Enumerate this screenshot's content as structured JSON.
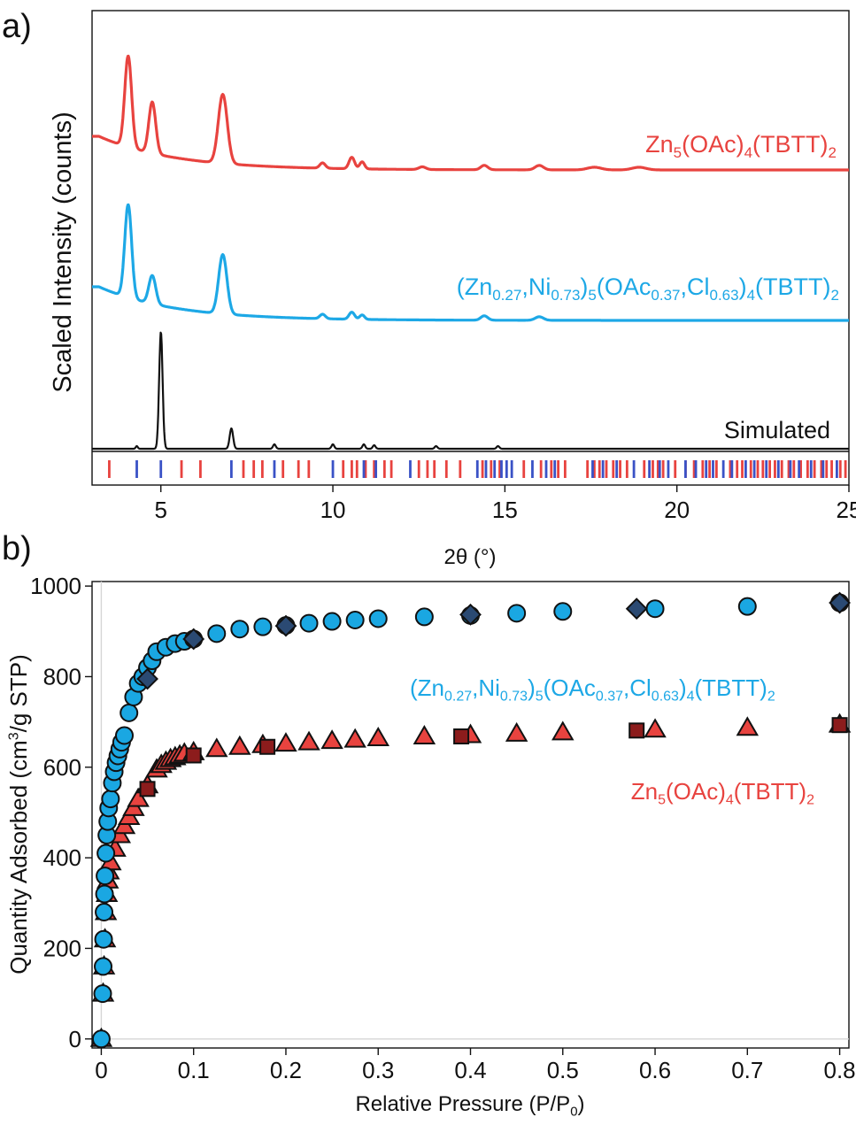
{
  "panels": {
    "a": {
      "label": "a)"
    },
    "b": {
      "label": "b)"
    }
  },
  "chart_data": [
    {
      "type": "line",
      "xlabel": "2θ (°)",
      "ylabel": "Scaled Intensity (counts)",
      "xlim": [
        3,
        25
      ],
      "xticks": [
        5,
        10,
        15,
        20,
        25
      ],
      "grid": false,
      "series": [
        {
          "name": "Zn5(OAc)4(TBTT)2",
          "label_parts": [
            [
              "Zn",
              ""
            ],
            [
              "5",
              "sub"
            ],
            [
              "(OAc)",
              ""
            ],
            [
              "4",
              "sub"
            ],
            [
              "(TBTT)",
              ""
            ],
            [
              "2",
              "sub"
            ]
          ],
          "color": "#e8433f",
          "baseline": 0.6,
          "end_level": 0.55,
          "peaks": [
            [
              4.05,
              10.3,
              0.1
            ],
            [
              4.75,
              5.8,
              0.1
            ],
            [
              6.8,
              7.8,
              0.13
            ],
            [
              9.7,
              0.6,
              0.08
            ],
            [
              10.55,
              1.3,
              0.08
            ],
            [
              10.85,
              0.8,
              0.07
            ],
            [
              12.6,
              0.3,
              0.1
            ],
            [
              14.4,
              0.5,
              0.1
            ],
            [
              16.0,
              0.5,
              0.12
            ],
            [
              17.6,
              0.3,
              0.2
            ],
            [
              18.9,
              0.3,
              0.2
            ]
          ]
        },
        {
          "name": "(Zn0.27,Ni0.73)5(OAc0.37,Cl0.63)4(TBTT)2",
          "label_parts": [
            [
              "(Zn",
              ""
            ],
            [
              "0.27",
              "sub"
            ],
            [
              ",Ni",
              ""
            ],
            [
              "0.73",
              "sub"
            ],
            [
              ")",
              ""
            ],
            [
              "5",
              "sub"
            ],
            [
              "(OAc",
              ""
            ],
            [
              "0.37",
              "sub"
            ],
            [
              ",Cl",
              ""
            ],
            [
              "0.63",
              "sub"
            ],
            [
              ")",
              ""
            ],
            [
              "4",
              "sub"
            ],
            [
              "(TBTT)",
              ""
            ],
            [
              "2",
              "sub"
            ]
          ],
          "color": "#1da8e6",
          "baseline": 0.6,
          "end_level": 0.6,
          "peaks": [
            [
              4.05,
              10.5,
              0.1
            ],
            [
              4.75,
              3.2,
              0.1
            ],
            [
              6.8,
              6.7,
              0.12
            ],
            [
              9.7,
              0.5,
              0.08
            ],
            [
              10.55,
              0.8,
              0.08
            ],
            [
              10.85,
              0.5,
              0.07
            ],
            [
              14.4,
              0.5,
              0.1
            ],
            [
              16.0,
              0.4,
              0.12
            ]
          ]
        },
        {
          "name": "Simulated",
          "label_parts": [
            [
              "Simulated",
              ""
            ]
          ],
          "color": "#111111",
          "baseline": 0.0,
          "end_level": 0.0,
          "peaks": [
            [
              4.3,
              0.3,
              0.03
            ],
            [
              5.0,
              13.2,
              0.05
            ],
            [
              7.05,
              2.3,
              0.05
            ],
            [
              8.3,
              0.5,
              0.04
            ],
            [
              10.0,
              0.5,
              0.04
            ],
            [
              10.9,
              0.5,
              0.04
            ],
            [
              11.2,
              0.4,
              0.04
            ],
            [
              13.0,
              0.3,
              0.04
            ],
            [
              14.8,
              0.3,
              0.04
            ]
          ]
        }
      ],
      "reflection_ticks": {
        "red": {
          "color": "#e8433f",
          "positions": [
            3.5,
            5.6,
            6.15,
            7.4,
            7.7,
            7.95,
            8.55,
            9.0,
            9.3,
            10.3,
            10.55,
            10.7,
            10.95,
            11.2,
            11.5,
            11.7,
            12.5,
            12.75,
            12.95,
            13.3,
            13.7,
            14.35,
            14.6,
            14.85,
            15.55,
            16.05,
            16.35,
            16.55,
            16.75,
            17.4,
            17.6,
            17.75,
            17.95,
            18.15,
            18.35,
            18.55,
            19.05,
            19.3,
            19.45,
            19.6,
            19.95,
            20.25,
            20.5,
            20.75,
            20.95,
            21.15,
            21.55,
            21.75,
            21.9,
            22.15,
            22.35,
            22.5,
            22.7,
            22.85,
            23.05,
            23.25,
            23.4,
            23.6,
            23.8,
            24.0,
            24.2,
            24.35,
            24.5,
            24.75,
            24.9
          ]
        },
        "blue": {
          "color": "#3a52c6",
          "positions": [
            4.3,
            5.0,
            7.05,
            8.3,
            10.0,
            10.9,
            11.25,
            12.25,
            14.2,
            14.45,
            14.7,
            14.9,
            15.05,
            15.2,
            15.8,
            16.2,
            16.45,
            17.55,
            17.85,
            18.25,
            18.75,
            19.2,
            19.5,
            19.75,
            20.25,
            20.55,
            20.85,
            21.05,
            21.35,
            21.6,
            22.0,
            22.25,
            22.6,
            22.95,
            23.3,
            23.55,
            23.9,
            24.25,
            24.65
          ]
        }
      }
    },
    {
      "type": "scatter",
      "xlabel_parts": [
        [
          "Relative Pressure (P/P",
          ""
        ],
        [
          "0",
          "sub"
        ],
        [
          ")",
          ""
        ]
      ],
      "ylabel_parts": [
        [
          "Quantity Adsorbed (cm",
          ""
        ],
        [
          "3",
          "sup"
        ],
        [
          "/g STP)",
          ""
        ]
      ],
      "xlim": [
        -0.01,
        0.81
      ],
      "ylim": [
        -20,
        1010
      ],
      "xticks": [
        0,
        0.1,
        0.2,
        0.3,
        0.4,
        0.5,
        0.6,
        0.7,
        0.8
      ],
      "yticks": [
        0,
        200,
        400,
        600,
        800,
        1000
      ],
      "grid": false,
      "series": [
        {
          "name": "(Zn0.27,Ni0.73)5(OAc0.37,Cl0.63)4(TBTT)2 adsorption",
          "marker": "circle",
          "color": "#1aa7e2",
          "x": [
            0.0,
            0.0015,
            0.002,
            0.0025,
            0.003,
            0.0035,
            0.004,
            0.005,
            0.006,
            0.007,
            0.008,
            0.01,
            0.012,
            0.014,
            0.016,
            0.018,
            0.02,
            0.022,
            0.025,
            0.03,
            0.035,
            0.04,
            0.045,
            0.05,
            0.055,
            0.06,
            0.07,
            0.08,
            0.09,
            0.1,
            0.125,
            0.15,
            0.175,
            0.2,
            0.225,
            0.25,
            0.275,
            0.3,
            0.35,
            0.4,
            0.45,
            0.5,
            0.6,
            0.7,
            0.8
          ],
          "y": [
            0,
            100,
            160,
            220,
            280,
            320,
            360,
            410,
            450,
            480,
            510,
            530,
            565,
            590,
            610,
            625,
            640,
            655,
            670,
            720,
            755,
            785,
            800,
            820,
            835,
            855,
            865,
            873,
            878,
            883,
            895,
            905,
            910,
            913,
            918,
            922,
            925,
            928,
            932,
            935,
            940,
            944,
            950,
            955,
            963
          ]
        },
        {
          "name": "(Zn0.27,Ni0.73)5(OAc0.37,Cl0.63)4(TBTT)2 desorption",
          "marker": "diamond",
          "color": "#2b4a73",
          "x": [
            0.05,
            0.1,
            0.2,
            0.4,
            0.58,
            0.8
          ],
          "y": [
            795,
            883,
            912,
            937,
            950,
            963
          ]
        },
        {
          "name": "Zn5(OAc)4(TBTT)2 adsorption",
          "marker": "triangle",
          "color": "#e8433f",
          "x": [
            0.0,
            0.002,
            0.003,
            0.004,
            0.005,
            0.006,
            0.007,
            0.008,
            0.01,
            0.015,
            0.02,
            0.025,
            0.03,
            0.035,
            0.04,
            0.05,
            0.06,
            0.065,
            0.07,
            0.075,
            0.08,
            0.085,
            0.09,
            0.1,
            0.125,
            0.15,
            0.175,
            0.2,
            0.225,
            0.25,
            0.275,
            0.3,
            0.35,
            0.4,
            0.45,
            0.5,
            0.6,
            0.7,
            0.8
          ],
          "y": [
            0,
            100,
            160,
            220,
            280,
            320,
            350,
            370,
            390,
            420,
            450,
            470,
            490,
            510,
            530,
            560,
            595,
            605,
            612,
            618,
            622,
            626,
            630,
            633,
            640,
            645,
            649,
            652,
            655,
            658,
            661,
            664,
            668,
            671,
            674,
            677,
            683,
            687,
            694
          ]
        },
        {
          "name": "Zn5(OAc)4(TBTT)2 desorption",
          "marker": "square",
          "color": "#8c1c1c",
          "x": [
            0.05,
            0.1,
            0.18,
            0.39,
            0.58,
            0.8
          ],
          "y": [
            552,
            626,
            645,
            668,
            681,
            693
          ]
        }
      ],
      "labels": {
        "blue": {
          "color": "#1da8e6",
          "parts": [
            [
              "(Zn",
              ""
            ],
            [
              "0.27",
              "sub"
            ],
            [
              ",Ni",
              ""
            ],
            [
              "0.73",
              "sub"
            ],
            [
              ")",
              ""
            ],
            [
              "5",
              "sub"
            ],
            [
              "(OAc",
              ""
            ],
            [
              "0.37",
              "sub"
            ],
            [
              ",Cl",
              ""
            ],
            [
              "0.63",
              "sub"
            ],
            [
              ")",
              ""
            ],
            [
              "4",
              "sub"
            ],
            [
              "(TBTT)",
              ""
            ],
            [
              "2",
              "sub"
            ]
          ]
        },
        "red": {
          "color": "#e8433f",
          "parts": [
            [
              "Zn",
              ""
            ],
            [
              "5",
              "sub"
            ],
            [
              "(OAc)",
              ""
            ],
            [
              "4",
              "sub"
            ],
            [
              "(TBTT)",
              ""
            ],
            [
              "2",
              "sub"
            ]
          ]
        }
      }
    }
  ]
}
